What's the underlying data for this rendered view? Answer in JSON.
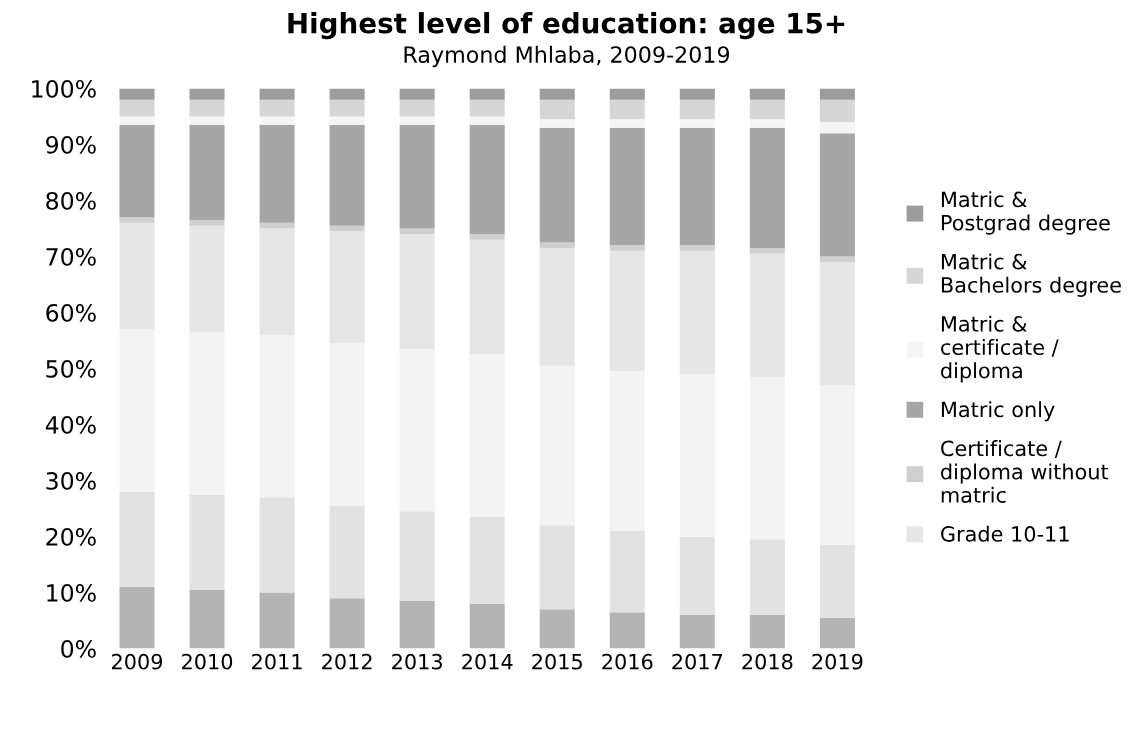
{
  "chart_data": {
    "type": "bar",
    "stacked": true,
    "title": "Highest level of education: age 15+",
    "subtitle": "Raymond Mhlaba, 2009-2019",
    "categories": [
      "2009",
      "2010",
      "2011",
      "2012",
      "2013",
      "2014",
      "2015",
      "2016",
      "2017",
      "2018",
      "2019"
    ],
    "series": [
      {
        "color": "#b4b4b4",
        "values": [
          11,
          10.5,
          10,
          9,
          8.5,
          8,
          7,
          6.5,
          6,
          6,
          5.5
        ]
      },
      {
        "color": "#e2e2e2",
        "values": [
          17,
          17,
          17,
          16.5,
          16,
          15.5,
          15,
          14.5,
          14,
          13.5,
          13
        ]
      },
      {
        "color": "#f3f3f3",
        "values": [
          29,
          29,
          29,
          29,
          29,
          29,
          28.5,
          28.5,
          29,
          29,
          28.5
        ]
      },
      {
        "name": "Grade 10-11",
        "color": "#e6e6e6",
        "values": [
          19,
          19,
          19,
          20,
          20.5,
          20.5,
          21,
          21.5,
          22,
          22,
          22
        ]
      },
      {
        "name": "Certificate / diploma without matric",
        "color": "#cfcfcf",
        "values": [
          1,
          1,
          1,
          1,
          1,
          1,
          1,
          1,
          1,
          1,
          1
        ]
      },
      {
        "name": "Matric only",
        "color": "#a6a6a6",
        "values": [
          16.5,
          17,
          17.5,
          18,
          18.5,
          19.5,
          20.5,
          21,
          21,
          21.5,
          22
        ]
      },
      {
        "name": "Matric & certificate / diploma",
        "color": "#f5f5f5",
        "values": [
          1.5,
          1.5,
          1.5,
          1.5,
          1.5,
          1.5,
          1.5,
          1.5,
          1.5,
          1.5,
          2
        ]
      },
      {
        "name": "Matric & Bachelors degree",
        "color": "#d6d6d6",
        "values": [
          3,
          3,
          3,
          3,
          3,
          3,
          3.5,
          3.5,
          3.5,
          3.5,
          4
        ]
      },
      {
        "name": "Matric & Postgrad degree",
        "color": "#9c9c9c",
        "values": [
          2,
          2,
          2,
          2,
          2,
          2,
          2,
          2,
          2,
          2,
          2
        ]
      }
    ],
    "ylim": [
      0,
      100
    ],
    "yticks": [
      {
        "value": 0,
        "label": "0%"
      },
      {
        "value": 10,
        "label": "10%"
      },
      {
        "value": 20,
        "label": "20%"
      },
      {
        "value": 30,
        "label": "30%"
      },
      {
        "value": 40,
        "label": "40%"
      },
      {
        "value": 50,
        "label": "50%"
      },
      {
        "value": 60,
        "label": "60%"
      },
      {
        "value": 70,
        "label": "70%"
      },
      {
        "value": 80,
        "label": "80%"
      },
      {
        "value": 90,
        "label": "90%"
      },
      {
        "value": 100,
        "label": "100%"
      }
    ],
    "grid": false,
    "legend": "right"
  }
}
